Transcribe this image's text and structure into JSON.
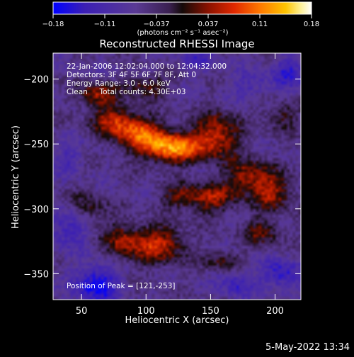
{
  "colorbar": {
    "ticks": [
      "-0.18",
      "-0.11",
      "-0.037",
      "0.037",
      "0.11",
      "0.18"
    ],
    "units_label": "(photons cm⁻² s⁻¹ asec⁻²)",
    "range": [
      -0.18,
      0.18
    ]
  },
  "chart_data": {
    "type": "heatmap",
    "title": "Reconstructed RHESSI Image",
    "xlabel": "Heliocentric X (arcsec)",
    "ylabel": "Heliocentric Y (arcsec)",
    "xlim": [
      28,
      220
    ],
    "ylim": [
      -370,
      -180
    ],
    "xticks": [
      50,
      100,
      150,
      200
    ],
    "yticks": [
      -200,
      -250,
      -300,
      -350
    ],
    "colormap": "RHESSI heat (blue-purple-red-orange-yellow-white)",
    "peak": [
      121,
      -253
    ],
    "info_lines": [
      "22-Jan-2006 12:02:04.000 to 12:04:32.000",
      "Detectors: 3F 4F 5F 6F 7F 8F, Att 0",
      "Energy Range: 3.0 - 6.0 keV",
      "Clean     Total counts: 4.30E+03"
    ],
    "peak_label": "Position of Peak = [121,-253]",
    "sources": [
      {
        "x": 121,
        "y": -253,
        "amp": 0.18,
        "sx": 16,
        "sy": 8
      },
      {
        "x": 95,
        "y": -242,
        "amp": 0.13,
        "sx": 14,
        "sy": 9
      },
      {
        "x": 75,
        "y": -232,
        "amp": 0.1,
        "sx": 12,
        "sy": 8
      },
      {
        "x": 62,
        "y": -212,
        "amp": 0.1,
        "sx": 10,
        "sy": 7
      },
      {
        "x": 100,
        "y": -206,
        "amp": 0.08,
        "sx": 12,
        "sy": 6
      },
      {
        "x": 155,
        "y": -243,
        "amp": 0.12,
        "sx": 12,
        "sy": 12
      },
      {
        "x": 178,
        "y": -275,
        "amp": 0.1,
        "sx": 12,
        "sy": 9
      },
      {
        "x": 150,
        "y": -292,
        "amp": 0.1,
        "sx": 14,
        "sy": 8
      },
      {
        "x": 198,
        "y": -287,
        "amp": 0.1,
        "sx": 11,
        "sy": 10
      },
      {
        "x": 110,
        "y": -328,
        "amp": 0.12,
        "sx": 14,
        "sy": 10
      },
      {
        "x": 82,
        "y": -325,
        "amp": 0.09,
        "sx": 10,
        "sy": 10
      },
      {
        "x": 55,
        "y": -300,
        "amp": 0.06,
        "sx": 10,
        "sy": 9
      },
      {
        "x": 190,
        "y": -318,
        "amp": 0.08,
        "sx": 10,
        "sy": 7
      },
      {
        "x": 158,
        "y": -340,
        "amp": 0.06,
        "sx": 10,
        "sy": 6
      },
      {
        "x": 205,
        "y": -228,
        "amp": 0.06,
        "sx": 9,
        "sy": 8
      },
      {
        "x": 125,
        "y": -290,
        "amp": 0.07,
        "sx": 10,
        "sy": 6
      },
      {
        "x": 62,
        "y": -358,
        "amp": -0.12,
        "sx": 12,
        "sy": 10
      },
      {
        "x": 40,
        "y": -315,
        "amp": -0.08,
        "sx": 10,
        "sy": 10
      },
      {
        "x": 205,
        "y": -350,
        "amp": -0.09,
        "sx": 10,
        "sy": 8
      },
      {
        "x": 170,
        "y": -358,
        "amp": -0.07,
        "sx": 10,
        "sy": 7
      },
      {
        "x": 210,
        "y": -195,
        "amp": -0.07,
        "sx": 10,
        "sy": 10
      },
      {
        "x": 180,
        "y": -205,
        "amp": -0.05,
        "sx": 10,
        "sy": 8
      },
      {
        "x": 40,
        "y": -262,
        "amp": -0.05,
        "sx": 8,
        "sy": 8
      },
      {
        "x": 140,
        "y": -185,
        "amp": -0.05,
        "sx": 10,
        "sy": 7
      }
    ]
  },
  "timestamp": "5-May-2022 13:34"
}
